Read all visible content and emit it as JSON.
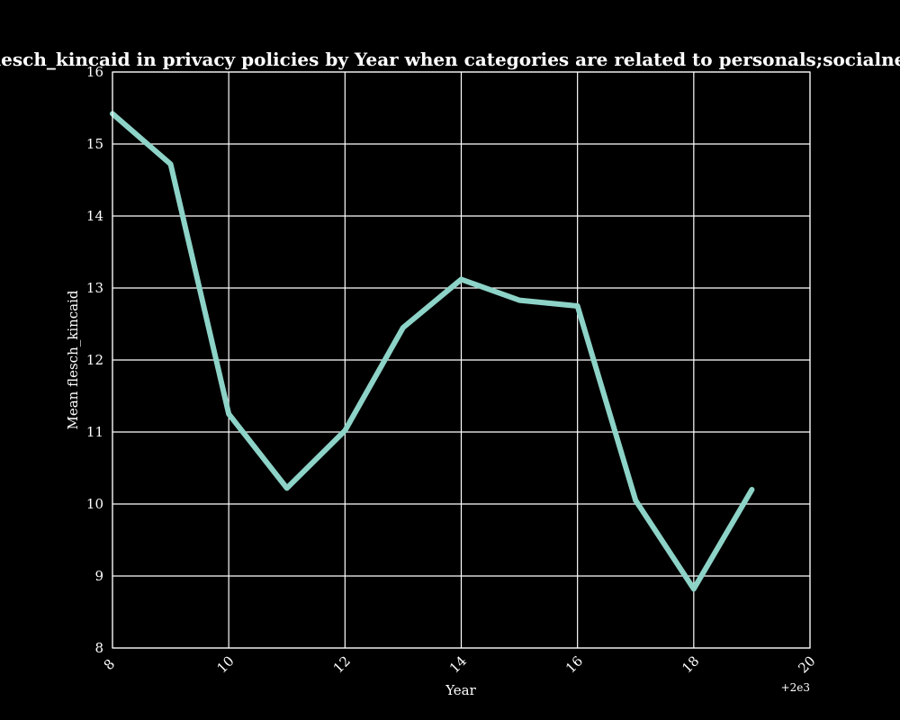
{
  "chart_data": {
    "type": "line",
    "title": "Mean flesch_kincaid in privacy policies by Year when categories are related to personals;socialnetworking",
    "xlabel": "Year",
    "ylabel": "Mean flesch_kincaid",
    "x_offset_label": "+2e3",
    "xlim": [
      8,
      20
    ],
    "ylim": [
      8,
      16
    ],
    "x_ticks": [
      8,
      10,
      12,
      14,
      16,
      18,
      20
    ],
    "y_ticks": [
      8,
      9,
      10,
      11,
      12,
      13,
      14,
      15,
      16
    ],
    "grid": true,
    "x": [
      8,
      9,
      10,
      11,
      12,
      13,
      14,
      15,
      16,
      17,
      18,
      19
    ],
    "series": [
      {
        "values": [
          15.42,
          14.72,
          11.25,
          10.22,
          11.02,
          12.45,
          13.12,
          12.83,
          12.75,
          10.05,
          8.82,
          10.2
        ],
        "color": "#8dd3c7"
      }
    ]
  }
}
